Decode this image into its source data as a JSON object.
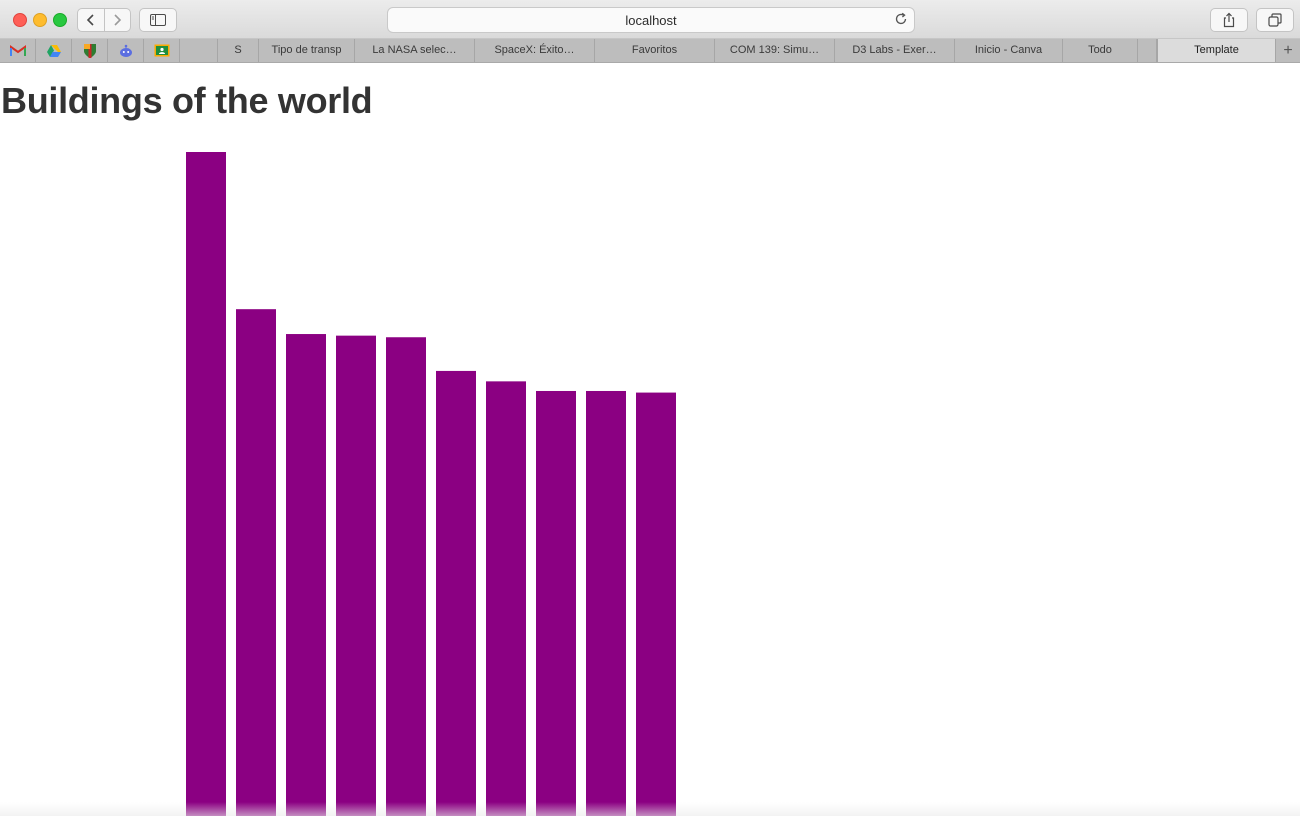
{
  "browser": {
    "url": "localhost",
    "tabs": [
      {
        "label": "",
        "icon": "gmail-icon",
        "pinned": true
      },
      {
        "label": "",
        "icon": "google-drive-icon",
        "pinned": true
      },
      {
        "label": "",
        "icon": "shield-crest-icon",
        "pinned": true
      },
      {
        "label": "",
        "icon": "reddit-icon",
        "pinned": true
      },
      {
        "label": "",
        "icon": "google-classroom-icon",
        "pinned": true
      },
      {
        "label": "",
        "icon": "",
        "pinned": true
      },
      {
        "label": "S",
        "pinned": false
      },
      {
        "label": "Tipo de transp",
        "pinned": false
      },
      {
        "label": "La NASA selec…",
        "pinned": false
      },
      {
        "label": "SpaceX: Éxito…",
        "pinned": false
      },
      {
        "label": "Favoritos",
        "pinned": false
      },
      {
        "label": "COM 139: Simu…",
        "pinned": false
      },
      {
        "label": "D3 Labs - Exer…",
        "pinned": false
      },
      {
        "label": "Inicio - Canva",
        "pinned": false
      },
      {
        "label": "Todo",
        "pinned": false
      },
      {
        "label": "",
        "pinned": false
      },
      {
        "label": "Template",
        "pinned": false,
        "active": true
      }
    ],
    "new_tab_symbol": "+"
  },
  "page": {
    "title": "Buildings of the world"
  },
  "chart_data": {
    "type": "bar",
    "title": "Buildings of the world",
    "categories": [
      "",
      "",
      "",
      "",
      "",
      "",
      "",
      "",
      "",
      ""
    ],
    "values": [
      828,
      632,
      601,
      599,
      597,
      555,
      542,
      530,
      530,
      528
    ],
    "ylim": [
      0,
      828
    ],
    "grid": false,
    "legend": "none",
    "bar_color": "#8b0082"
  }
}
